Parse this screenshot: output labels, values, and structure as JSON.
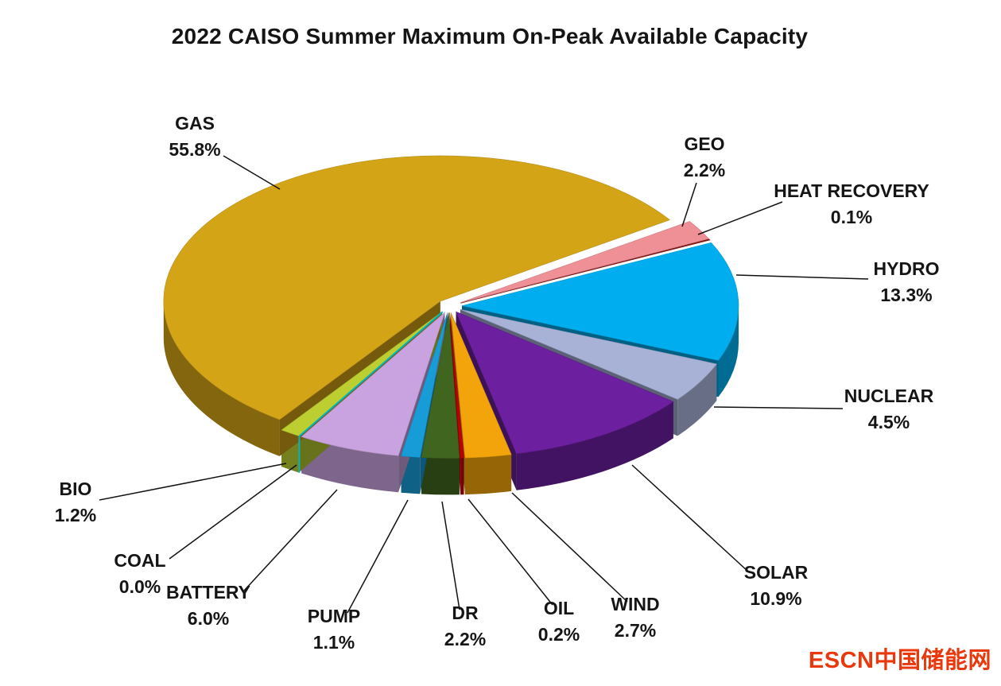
{
  "title": "2022 CAISO Summer Maximum On-Peak Available Capacity",
  "watermark": "ESCN中国储能网",
  "chart_data": {
    "type": "pie",
    "style": "3d-exploded",
    "title": "2022 CAISO Summer Maximum On-Peak Available Capacity",
    "unit": "%",
    "legend": "none",
    "data_labels": "category name + percent with leader lines",
    "start_angle_deg": 56,
    "clockwise": true,
    "slices": [
      {
        "label": "GEO",
        "value": 2.2,
        "color": "#EF9097"
      },
      {
        "label": "HEAT RECOVERY",
        "value": 0.1,
        "color": "#8E1313"
      },
      {
        "label": "HYDRO",
        "value": 13.3,
        "color": "#00AEEF"
      },
      {
        "label": "NUCLEAR",
        "value": 4.5,
        "color": "#A8B2D6"
      },
      {
        "label": "SOLAR",
        "value": 10.9,
        "color": "#6C1F9F"
      },
      {
        "label": "WIND",
        "value": 2.7,
        "color": "#F2A40A"
      },
      {
        "label": "OIL",
        "value": 0.2,
        "color": "#C00000"
      },
      {
        "label": "DR",
        "value": 2.2,
        "color": "#3F651E"
      },
      {
        "label": "PUMP",
        "value": 1.1,
        "color": "#189CD8"
      },
      {
        "label": "BATTERY",
        "value": 6.0,
        "color": "#C9A3E0"
      },
      {
        "label": "COAL",
        "value": 0.0,
        "color": "#00B5BE"
      },
      {
        "label": "BIO",
        "value": 1.2,
        "color": "#BDCF30"
      },
      {
        "label": "GAS",
        "value": 55.8,
        "color": "#D4A417"
      }
    ]
  }
}
